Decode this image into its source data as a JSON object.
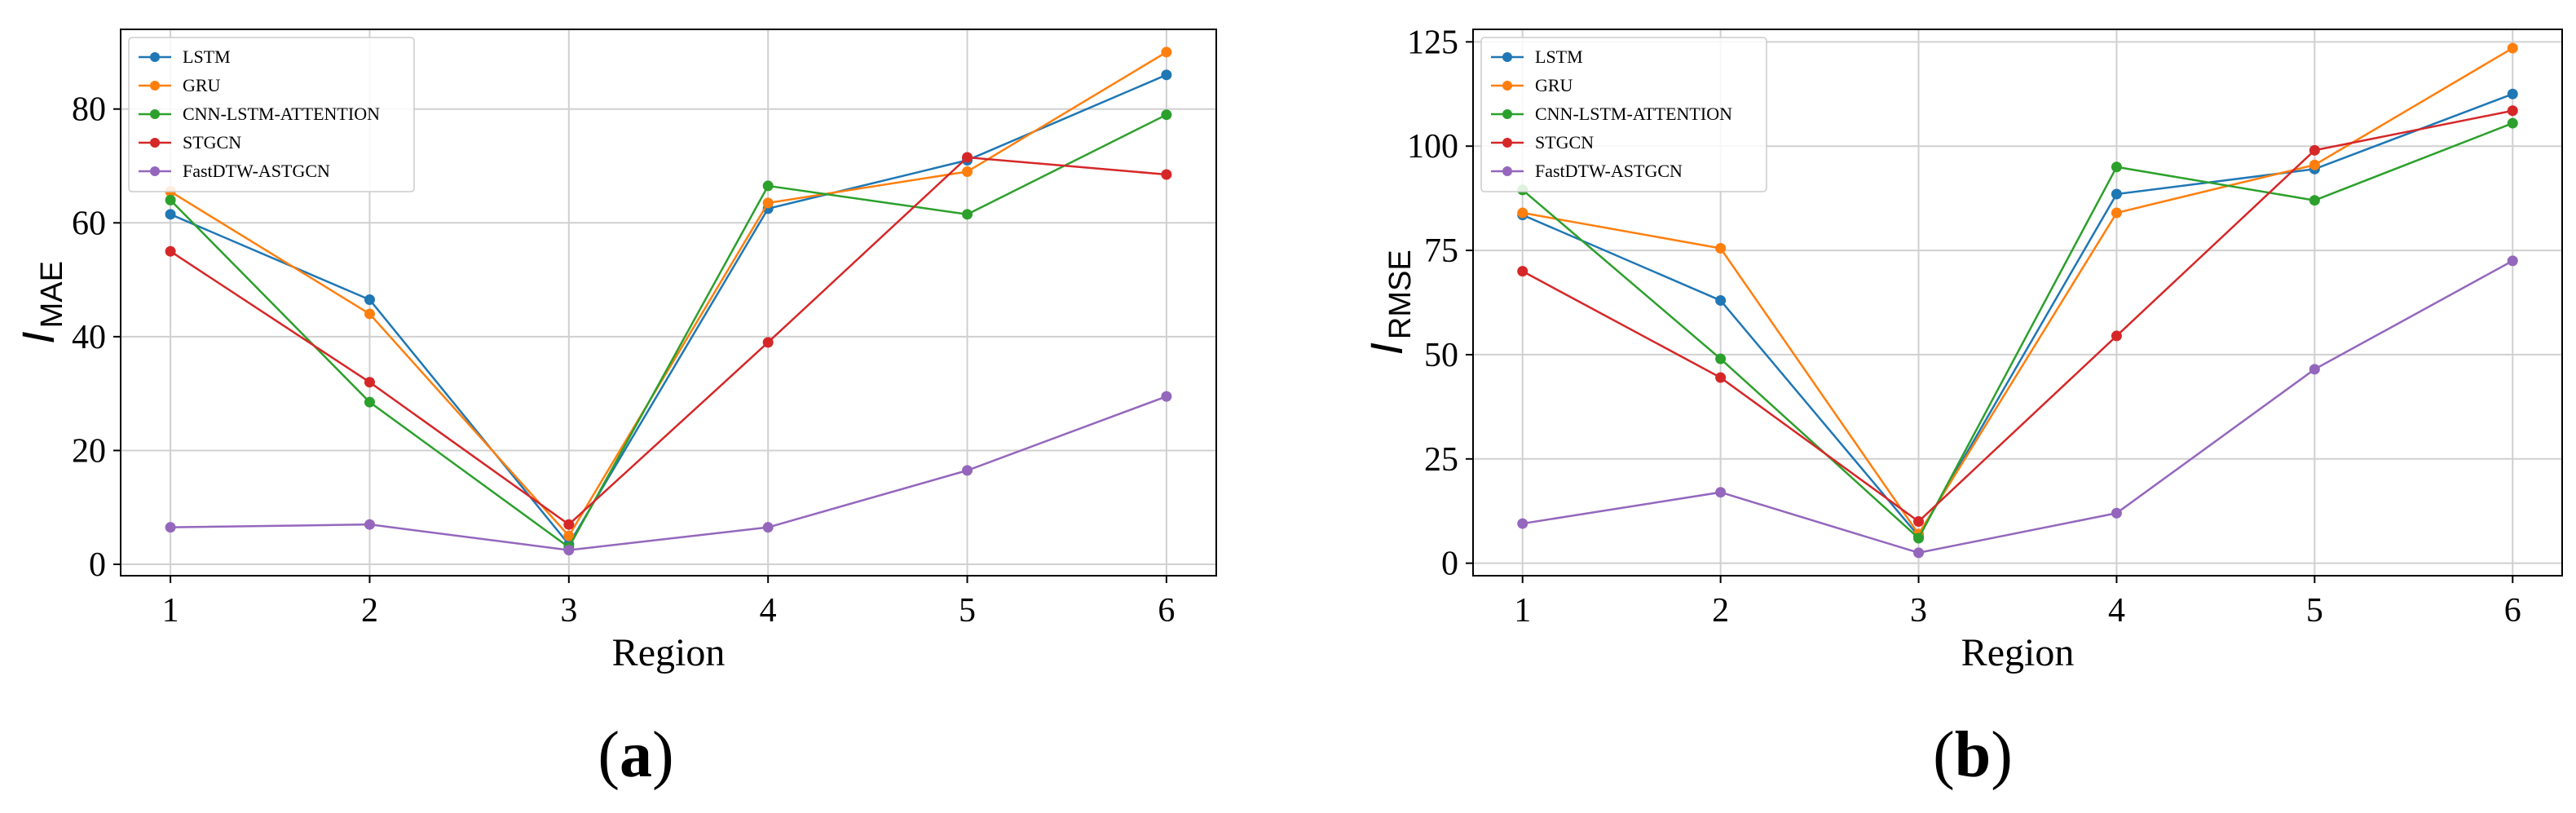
{
  "chart_data": [
    {
      "type": "line",
      "panel_label": "a",
      "xlabel": "Region",
      "ylabel_main": "I",
      "ylabel_sub": "MAE",
      "x": [
        1,
        2,
        3,
        4,
        5,
        6
      ],
      "xlim": [
        0.75,
        6.25
      ],
      "ylim": [
        -2,
        94
      ],
      "yticks": [
        0,
        20,
        40,
        60,
        80
      ],
      "grid": true,
      "legend_position": "top-left",
      "series": [
        {
          "name": "LSTM",
          "color": "#1f77b4",
          "values": [
            61.5,
            46.5,
            3.5,
            62.5,
            71.0,
            86.0
          ]
        },
        {
          "name": "GRU",
          "color": "#ff7f0e",
          "values": [
            65.5,
            44.0,
            5.0,
            63.5,
            69.0,
            90.0
          ]
        },
        {
          "name": "CNN-LSTM-ATTENTION",
          "color": "#2ca02c",
          "values": [
            64.0,
            28.5,
            3.0,
            66.5,
            61.5,
            79.0
          ]
        },
        {
          "name": "STGCN",
          "color": "#d62728",
          "values": [
            55.0,
            32.0,
            7.0,
            39.0,
            71.5,
            68.5
          ]
        },
        {
          "name": "FastDTW-ASTGCN",
          "color": "#9467bd",
          "values": [
            6.5,
            7.0,
            2.5,
            6.5,
            16.5,
            29.5
          ]
        }
      ]
    },
    {
      "type": "line",
      "panel_label": "b",
      "xlabel": "Region",
      "ylabel_main": "I",
      "ylabel_sub": "RMSE",
      "x": [
        1,
        2,
        3,
        4,
        5,
        6
      ],
      "xlim": [
        0.75,
        6.25
      ],
      "ylim": [
        -3,
        128
      ],
      "yticks": [
        0,
        25,
        50,
        75,
        100,
        125
      ],
      "grid": true,
      "legend_position": "top-left",
      "series": [
        {
          "name": "LSTM",
          "color": "#1f77b4",
          "values": [
            83.5,
            63.0,
            6.5,
            88.5,
            94.5,
            112.5
          ]
        },
        {
          "name": "GRU",
          "color": "#ff7f0e",
          "values": [
            84.0,
            75.5,
            7.0,
            84.0,
            95.5,
            123.5
          ]
        },
        {
          "name": "CNN-LSTM-ATTENTION",
          "color": "#2ca02c",
          "values": [
            89.5,
            49.0,
            6.0,
            95.0,
            87.0,
            105.5
          ]
        },
        {
          "name": "STGCN",
          "color": "#d62728",
          "values": [
            70.0,
            44.5,
            10.0,
            54.5,
            99.0,
            108.5
          ]
        },
        {
          "name": "FastDTW-ASTGCN",
          "color": "#9467bd",
          "values": [
            9.5,
            17.0,
            2.5,
            12.0,
            46.5,
            72.5
          ]
        }
      ]
    }
  ]
}
